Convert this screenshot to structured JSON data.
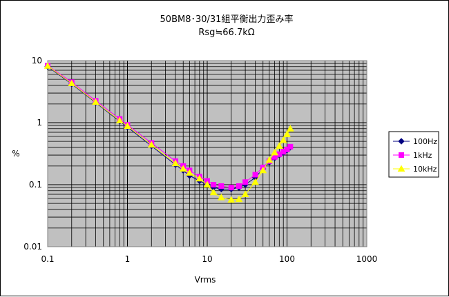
{
  "chart_data": {
    "type": "line",
    "title": "50BM8･30/31組平衡出力歪み率",
    "subtitle": "Rsg≒66.7kΩ",
    "xlabel": "Vrms",
    "ylabel": "%",
    "x_scale": "log",
    "y_scale": "log",
    "xlim": [
      0.1,
      1000
    ],
    "ylim": [
      0.01,
      10
    ],
    "x_ticks": [
      "0.1",
      "1",
      "10",
      "100",
      "1000"
    ],
    "y_ticks": [
      "10",
      "1",
      "0.1",
      "0.01"
    ],
    "grid": true,
    "legend_position": "right",
    "plot_background": "#c0c0c0",
    "series": [
      {
        "name": "100Hz",
        "color": "#000080",
        "marker": "diamond",
        "x": [
          0.1,
          0.2,
          0.4,
          0.8,
          1,
          2,
          4,
          5,
          6,
          8,
          10,
          12,
          15,
          20,
          25,
          30,
          40,
          50,
          60,
          70,
          80,
          90,
          100,
          110
        ],
        "y": [
          8.0,
          4.2,
          2.1,
          1.05,
          0.85,
          0.42,
          0.21,
          0.17,
          0.14,
          0.115,
          0.1,
          0.09,
          0.085,
          0.085,
          0.09,
          0.1,
          0.13,
          0.18,
          0.23,
          0.27,
          0.3,
          0.33,
          0.36,
          0.4
        ]
      },
      {
        "name": "1kHz",
        "color": "#ff00ff",
        "marker": "square",
        "x": [
          0.1,
          0.2,
          0.4,
          0.8,
          1,
          2,
          4,
          5,
          6,
          8,
          10,
          12,
          15,
          20,
          25,
          30,
          40,
          50,
          60,
          70,
          80,
          90,
          100,
          110
        ],
        "y": [
          8.3,
          4.5,
          2.25,
          1.15,
          0.92,
          0.47,
          0.24,
          0.2,
          0.17,
          0.135,
          0.115,
          0.1,
          0.095,
          0.09,
          0.095,
          0.11,
          0.145,
          0.19,
          0.24,
          0.28,
          0.31,
          0.34,
          0.37,
          0.41
        ]
      },
      {
        "name": "10kHz",
        "color": "#ffff00",
        "marker": "triangle",
        "x": [
          0.1,
          0.2,
          0.4,
          0.8,
          1,
          2,
          4,
          5,
          6,
          8,
          10,
          12,
          15,
          20,
          25,
          30,
          40,
          50,
          60,
          70,
          80,
          90,
          100,
          110
        ],
        "y": [
          8.2,
          4.3,
          2.15,
          1.08,
          0.88,
          0.44,
          0.22,
          0.18,
          0.155,
          0.125,
          0.1,
          0.075,
          0.062,
          0.057,
          0.058,
          0.07,
          0.11,
          0.17,
          0.25,
          0.33,
          0.42,
          0.52,
          0.65,
          0.8
        ]
      }
    ]
  }
}
